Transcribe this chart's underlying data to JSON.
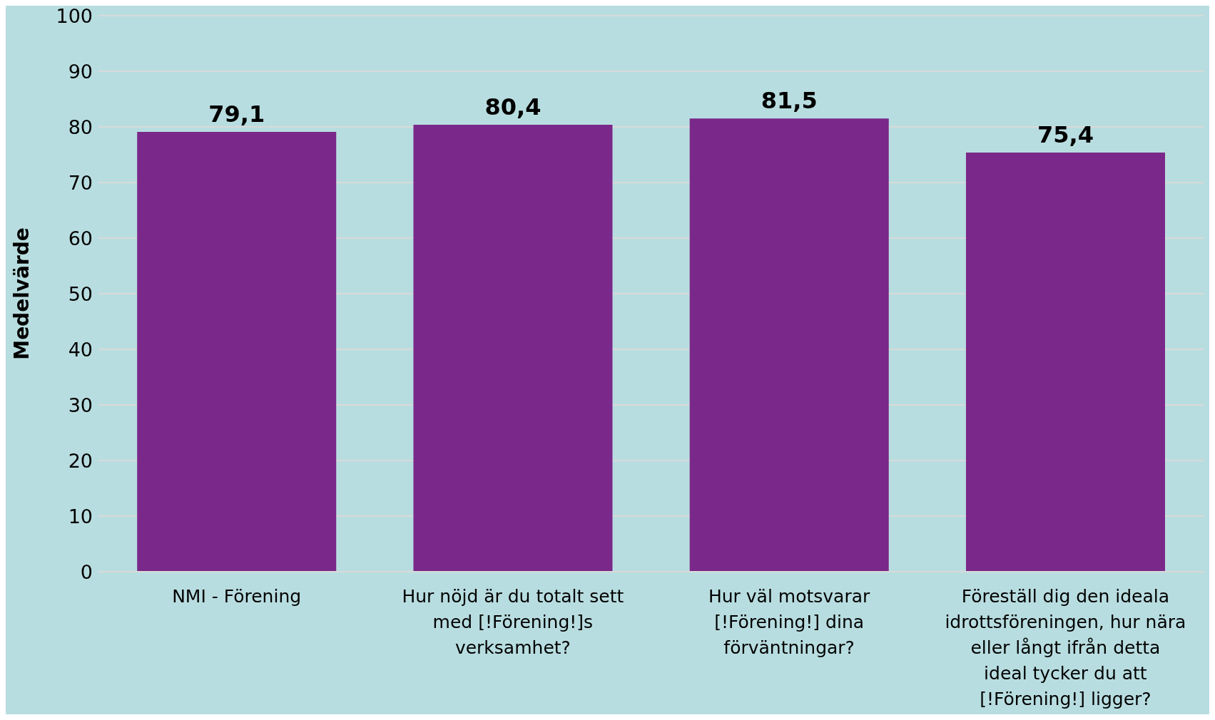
{
  "chart_data": {
    "type": "bar",
    "ylabel": "Medelvärde",
    "categories": [
      "NMI - Förening",
      "Hur nöjd är du totalt sett med [!Förening!]s verksamhet?",
      "Hur väl motsvarar [!Förening!] dina förväntningar?",
      "Föreställ dig den ideala idrottsföreningen, hur nära eller långt ifrån detta ideal tycker du att [!Förening!] ligger?"
    ],
    "values": [
      79.1,
      80.4,
      81.5,
      75.4
    ],
    "value_labels": [
      "79,1",
      "80,4",
      "81,5",
      "75,4"
    ],
    "color": "#7a2889",
    "ylim": [
      0,
      100
    ],
    "yticks": [
      0,
      10,
      20,
      30,
      40,
      50,
      60,
      70,
      80,
      90,
      100
    ],
    "grid": "y"
  }
}
